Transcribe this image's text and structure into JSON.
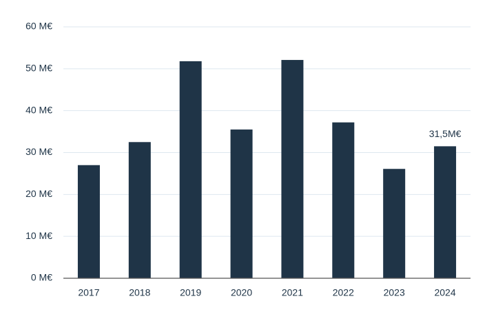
{
  "chart_data": {
    "type": "bar",
    "categories": [
      "2017",
      "2018",
      "2019",
      "2020",
      "2021",
      "2022",
      "2023",
      "2024"
    ],
    "values": [
      27.0,
      32.5,
      51.8,
      35.5,
      52.1,
      37.2,
      26.1,
      31.5
    ],
    "value_labels": [
      null,
      null,
      null,
      null,
      null,
      null,
      null,
      "31,5M€"
    ],
    "color": "#1f3447",
    "ylim": [
      0,
      60
    ],
    "yticks": [
      {
        "value": 0,
        "label": "0 M€"
      },
      {
        "value": 10,
        "label": "10 M€"
      },
      {
        "value": 20,
        "label": "20 M€"
      },
      {
        "value": 30,
        "label": "30 M€"
      },
      {
        "value": 40,
        "label": "40 M€"
      },
      {
        "value": 50,
        "label": "50 M€"
      },
      {
        "value": 60,
        "label": "60 M€"
      }
    ],
    "grid": true
  }
}
